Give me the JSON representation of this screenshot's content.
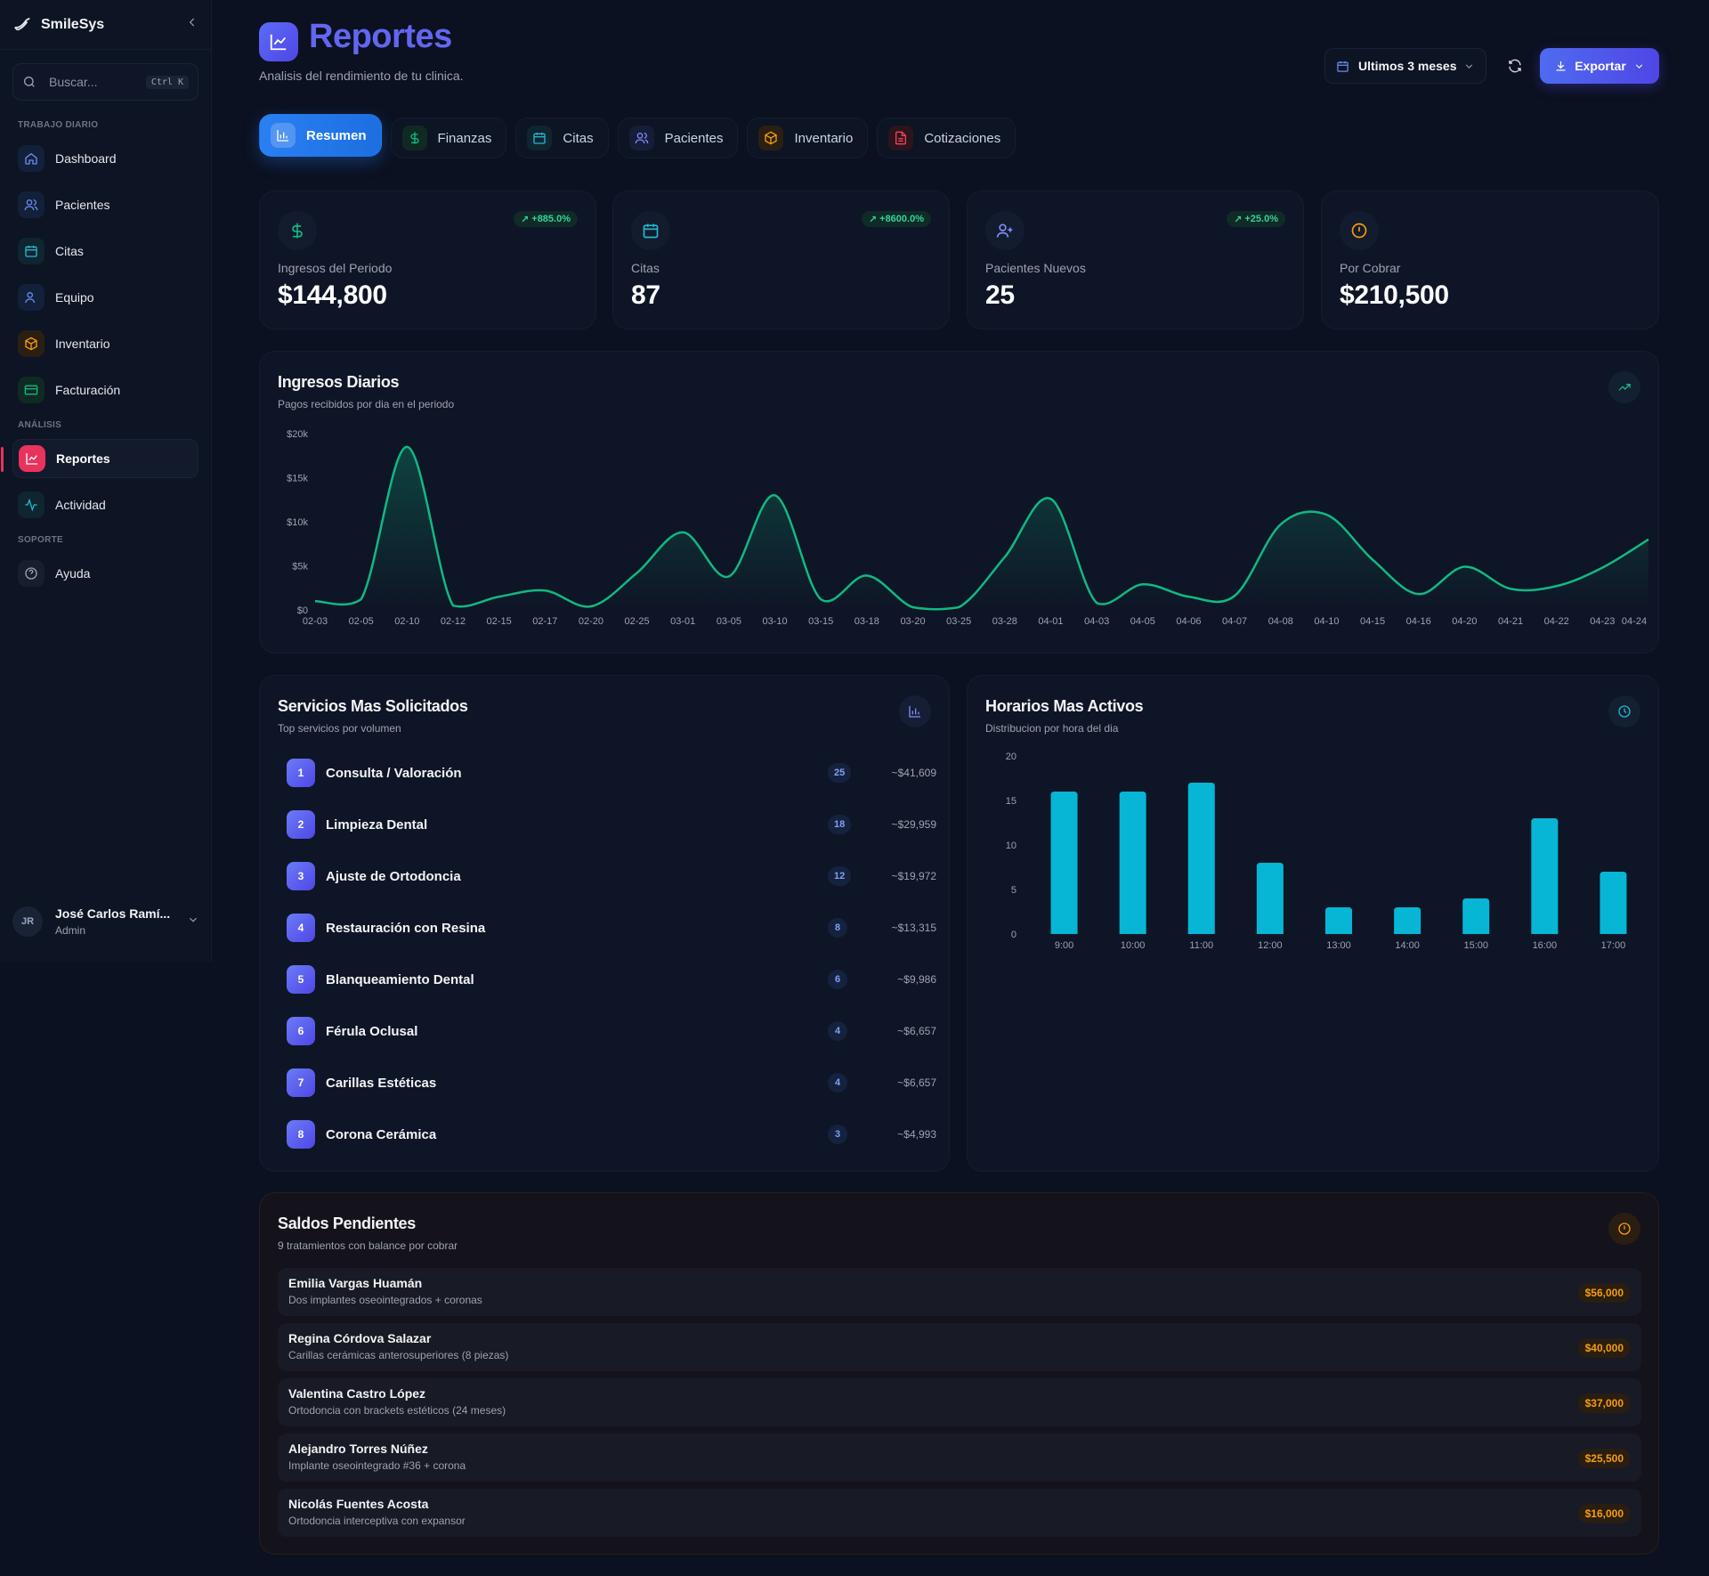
{
  "sidebar": {
    "brand": "SmileSys",
    "search": {
      "placeholder": "Buscar...",
      "shortcut": "Ctrl K"
    },
    "sections": {
      "daily": "TRABAJO DIARIO",
      "analysis": "ANÁLISIS",
      "support": "SOPORTE"
    },
    "items": [
      {
        "label": "Dashboard",
        "icon": "home-icon"
      },
      {
        "label": "Pacientes",
        "icon": "users-icon"
      },
      {
        "label": "Citas",
        "icon": "calendar-icon"
      },
      {
        "label": "Equipo",
        "icon": "user-icon"
      },
      {
        "label": "Inventario",
        "icon": "box-icon"
      },
      {
        "label": "Facturación",
        "icon": "credit-card-icon"
      },
      {
        "label": "Reportes",
        "icon": "chart-icon",
        "active": true
      },
      {
        "label": "Actividad",
        "icon": "activity-icon"
      },
      {
        "label": "Ayuda",
        "icon": "help-icon"
      }
    ],
    "user": {
      "initials": "JR",
      "name": "José Carlos Ramí...",
      "role": "Admin"
    }
  },
  "header": {
    "title": "Reportes",
    "subtitle": "Analisis del rendimiento de tu clinica.",
    "period": "Ultimos 3 meses",
    "export": "Exportar"
  },
  "tabs": [
    {
      "label": "Resumen",
      "active": true
    },
    {
      "label": "Finanzas"
    },
    {
      "label": "Citas"
    },
    {
      "label": "Pacientes"
    },
    {
      "label": "Inventario"
    },
    {
      "label": "Cotizaciones"
    }
  ],
  "stats": [
    {
      "label": "Ingresos del Periodo",
      "value": "$144,800",
      "change": "+885.0%"
    },
    {
      "label": "Citas",
      "value": "87",
      "change": "+8600.0%"
    },
    {
      "label": "Pacientes Nuevos",
      "value": "25",
      "change": "+25.0%"
    },
    {
      "label": "Por Cobrar",
      "value": "$210,500"
    }
  ],
  "income_card": {
    "title": "Ingresos Diarios",
    "subtitle": "Pagos recibidos por dia en el periodo"
  },
  "services_card": {
    "title": "Servicios Mas Solicitados",
    "subtitle": "Top servicios por volumen",
    "items": [
      {
        "rank": "1",
        "name": "Consulta / Valoración",
        "count": "25",
        "amount": "~$41,609"
      },
      {
        "rank": "2",
        "name": "Limpieza Dental",
        "count": "18",
        "amount": "~$29,959"
      },
      {
        "rank": "3",
        "name": "Ajuste de Ortodoncia",
        "count": "12",
        "amount": "~$19,972"
      },
      {
        "rank": "4",
        "name": "Restauración con Resina",
        "count": "8",
        "amount": "~$13,315"
      },
      {
        "rank": "5",
        "name": "Blanqueamiento Dental",
        "count": "6",
        "amount": "~$9,986"
      },
      {
        "rank": "6",
        "name": "Férula Oclusal",
        "count": "4",
        "amount": "~$6,657"
      },
      {
        "rank": "7",
        "name": "Carillas Estéticas",
        "count": "4",
        "amount": "~$6,657"
      },
      {
        "rank": "8",
        "name": "Corona Cerámica",
        "count": "3",
        "amount": "~$4,993"
      }
    ]
  },
  "hours_card": {
    "title": "Horarios Mas Activos",
    "subtitle": "Distribucion por hora del dia"
  },
  "balances_card": {
    "title": "Saldos Pendientes",
    "subtitle": "9 tratamientos con balance por cobrar",
    "items": [
      {
        "name": "Emilia Vargas Huamán",
        "desc": "Dos implantes oseointegrados + coronas",
        "amount": "$56,000"
      },
      {
        "name": "Regina Córdova Salazar",
        "desc": "Carillas cerámicas anterosuperiores (8 piezas)",
        "amount": "$40,000"
      },
      {
        "name": "Valentina Castro López",
        "desc": "Ortodoncia con brackets estéticos (24 meses)",
        "amount": "$37,000"
      },
      {
        "name": "Alejandro Torres Núñez",
        "desc": "Implante oseointegrado #36 + corona",
        "amount": "$25,500"
      },
      {
        "name": "Nicolás Fuentes Acosta",
        "desc": "Ortodoncia interceptiva con expansor",
        "amount": "$16,000"
      }
    ]
  },
  "chart_data": [
    {
      "type": "area",
      "title": "Ingresos Diarios",
      "categories": [
        "02-03",
        "02-05",
        "02-10",
        "02-12",
        "02-15",
        "02-17",
        "02-20",
        "02-25",
        "03-01",
        "03-05",
        "03-10",
        "03-15",
        "03-18",
        "03-20",
        "03-25",
        "03-28",
        "04-01",
        "04-03",
        "04-05",
        "04-06",
        "04-07",
        "04-08",
        "04-10",
        "04-15",
        "04-16",
        "04-20",
        "04-21",
        "04-22",
        "04-23",
        "04-24"
      ],
      "values": [
        1000,
        1200,
        18500,
        500,
        1500,
        2200,
        400,
        4200,
        8800,
        3800,
        13000,
        1200,
        3900,
        300,
        300,
        6000,
        12600,
        800,
        2900,
        1500,
        1600,
        9700,
        10800,
        5700,
        1800,
        4900,
        2400,
        2700,
        4800,
        8000
      ],
      "ylim": [
        0,
        20000
      ],
      "yticks": [
        "$0",
        "$5k",
        "$10k",
        "$15k",
        "$20k"
      ],
      "color": "#10b981"
    },
    {
      "type": "bar",
      "title": "Horarios Mas Activos",
      "categories": [
        "9:00",
        "10:00",
        "11:00",
        "12:00",
        "13:00",
        "14:00",
        "15:00",
        "16:00",
        "17:00"
      ],
      "values": [
        16,
        16,
        17,
        8,
        3,
        3,
        4,
        13,
        7
      ],
      "ylim": [
        0,
        20
      ],
      "yticks": [
        "0",
        "5",
        "10",
        "15",
        "20"
      ],
      "color": "#06b6d4"
    }
  ]
}
